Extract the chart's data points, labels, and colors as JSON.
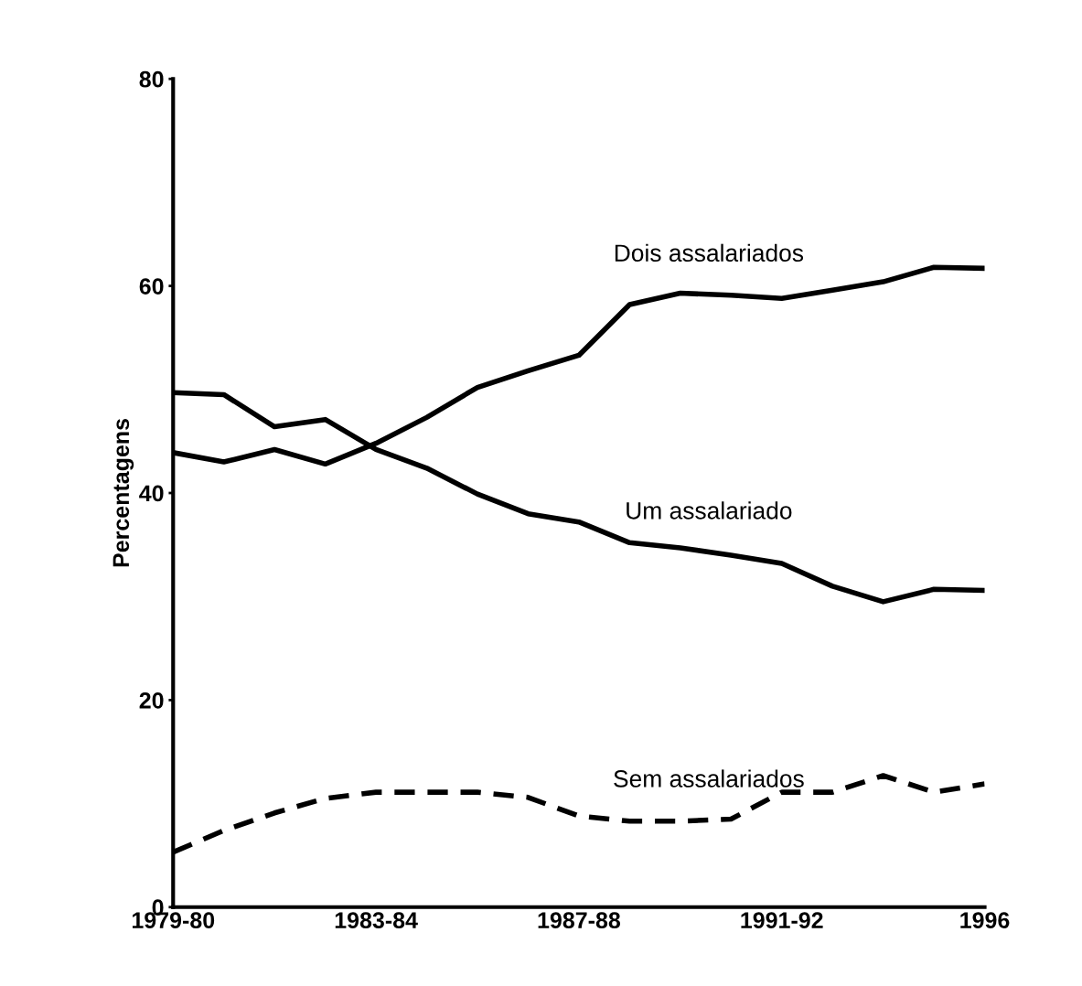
{
  "chart_data": {
    "type": "line",
    "ylabel": "Percentagens",
    "categories": [
      "1979-80",
      null,
      null,
      null,
      "1983-84",
      null,
      null,
      null,
      "1987-88",
      null,
      null,
      null,
      "1991-92",
      null,
      null,
      null,
      "1996"
    ],
    "series": [
      {
        "name": "Dois assalariados",
        "color": "#000000",
        "line_style": "solid",
        "values": [
          43.9,
          43.0,
          44.2,
          42.8,
          44.8,
          47.3,
          50.2,
          51.8,
          53.3,
          58.2,
          59.3,
          59.1,
          58.8,
          59.6,
          60.4,
          61.8,
          61.7
        ]
      },
      {
        "name": "Um assalariado",
        "color": "#000000",
        "line_style": "solid",
        "values": [
          49.7,
          49.5,
          46.4,
          47.1,
          44.2,
          42.4,
          39.9,
          38.0,
          37.2,
          35.2,
          34.7,
          34.0,
          33.2,
          31.0,
          29.5,
          30.7,
          30.6
        ]
      },
      {
        "name": "Sem assalariados",
        "color": "#000000",
        "line_style": "dashed",
        "values": [
          5.3,
          7.4,
          9.1,
          10.5,
          11.1,
          11.1,
          11.1,
          10.6,
          8.8,
          8.3,
          8.3,
          8.5,
          11.1,
          11.1,
          12.7,
          11.1,
          11.9
        ]
      }
    ],
    "ylim": [
      0,
      80
    ],
    "yticks": [
      0,
      20,
      40,
      60,
      80
    ],
    "grid": false,
    "legend": false,
    "marker": "none"
  }
}
